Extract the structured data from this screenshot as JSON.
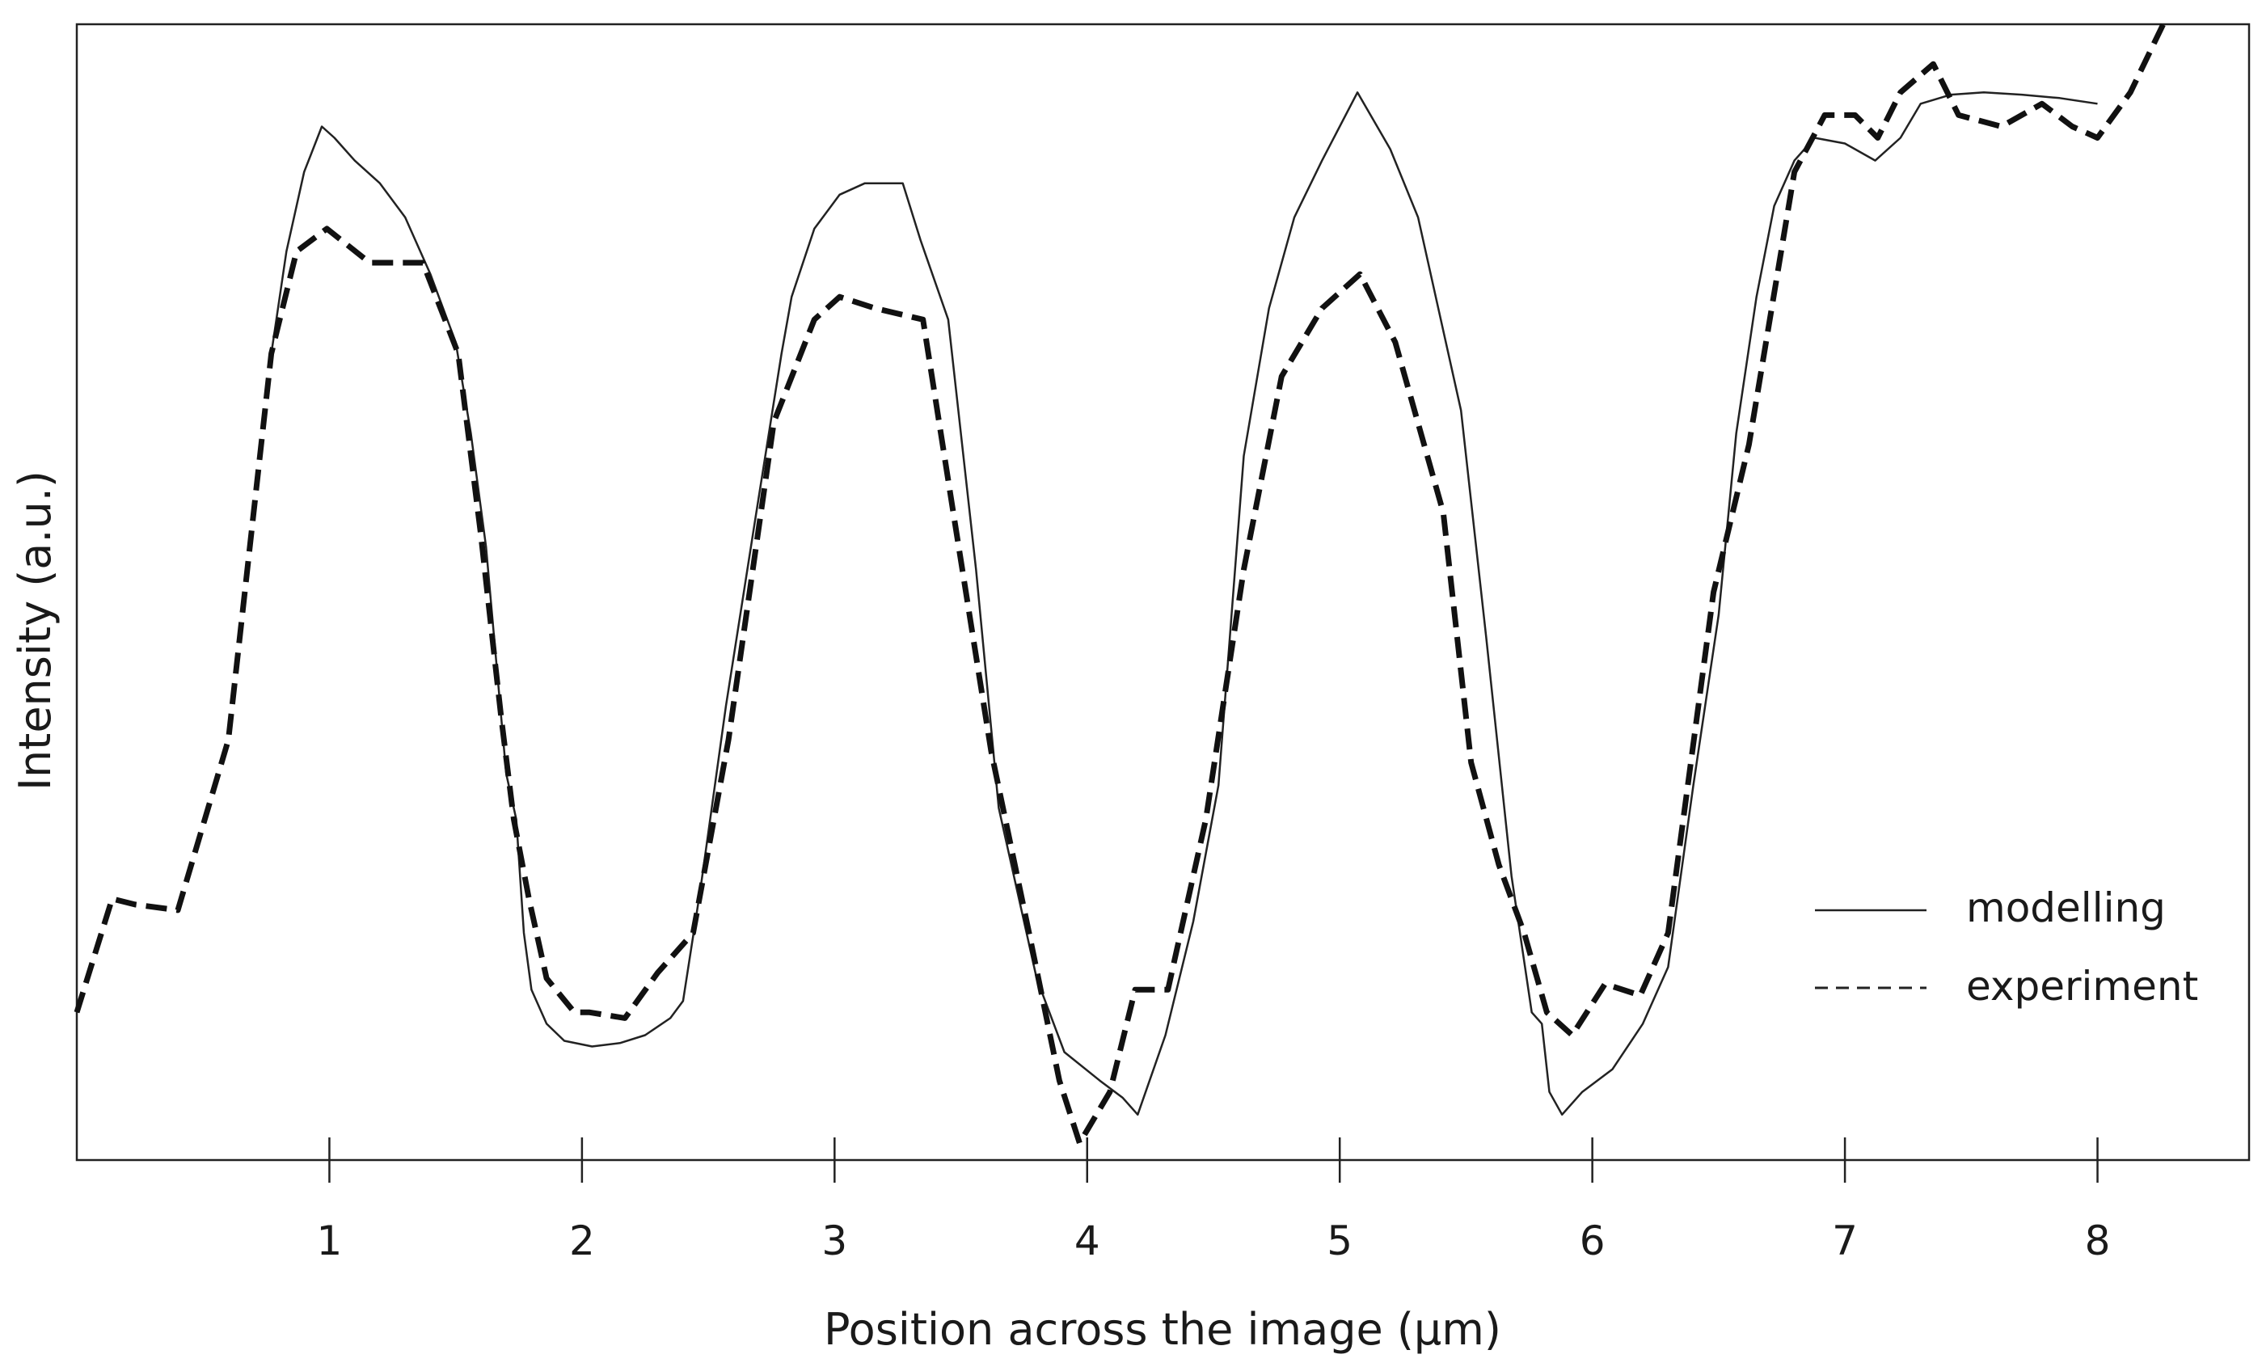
{
  "chart_data": {
    "type": "line",
    "title": "",
    "xlabel": "Position across the image (µm)",
    "ylabel": "Intensity (a.u.)",
    "xlim": [
      0,
      8.6
    ],
    "ylim": [
      0,
      1
    ],
    "x_ticks": [
      1,
      2,
      3,
      4,
      5,
      6,
      7,
      8
    ],
    "y_ticks": [],
    "grid": false,
    "legend_position": "bottom-right",
    "series": [
      {
        "name": "modelling",
        "style": "solid",
        "color": "#222222",
        "points": [
          [
            0.77,
            0.71
          ],
          [
            0.83,
            0.8
          ],
          [
            0.9,
            0.87
          ],
          [
            0.97,
            0.91
          ],
          [
            1.02,
            0.9
          ],
          [
            1.1,
            0.88
          ],
          [
            1.2,
            0.86
          ],
          [
            1.3,
            0.83
          ],
          [
            1.4,
            0.78
          ],
          [
            1.5,
            0.72
          ],
          [
            1.56,
            0.64
          ],
          [
            1.62,
            0.54
          ],
          [
            1.66,
            0.44
          ],
          [
            1.7,
            0.34
          ],
          [
            1.74,
            0.3
          ],
          [
            1.77,
            0.2
          ],
          [
            1.8,
            0.15
          ],
          [
            1.86,
            0.12
          ],
          [
            1.93,
            0.105
          ],
          [
            2.04,
            0.1
          ],
          [
            2.15,
            0.103
          ],
          [
            2.25,
            0.11
          ],
          [
            2.35,
            0.125
          ],
          [
            2.4,
            0.14
          ],
          [
            2.47,
            0.24
          ],
          [
            2.57,
            0.4
          ],
          [
            2.69,
            0.57
          ],
          [
            2.79,
            0.71
          ],
          [
            2.83,
            0.76
          ],
          [
            2.92,
            0.82
          ],
          [
            3.02,
            0.85
          ],
          [
            3.12,
            0.86
          ],
          [
            3.27,
            0.86
          ],
          [
            3.34,
            0.81
          ],
          [
            3.45,
            0.74
          ],
          [
            3.56,
            0.52
          ],
          [
            3.65,
            0.31
          ],
          [
            3.8,
            0.16
          ],
          [
            3.91,
            0.095
          ],
          [
            4.05,
            0.07
          ],
          [
            4.14,
            0.055
          ],
          [
            4.2,
            0.04
          ],
          [
            4.31,
            0.11
          ],
          [
            4.42,
            0.21
          ],
          [
            4.52,
            0.33
          ],
          [
            4.62,
            0.62
          ],
          [
            4.72,
            0.75
          ],
          [
            4.82,
            0.83
          ],
          [
            4.93,
            0.88
          ],
          [
            5.07,
            0.94
          ],
          [
            5.2,
            0.89
          ],
          [
            5.31,
            0.83
          ],
          [
            5.48,
            0.66
          ],
          [
            5.58,
            0.46
          ],
          [
            5.68,
            0.25
          ],
          [
            5.76,
            0.13
          ],
          [
            5.8,
            0.12
          ],
          [
            5.83,
            0.06
          ],
          [
            5.88,
            0.04
          ],
          [
            5.96,
            0.06
          ],
          [
            6.08,
            0.08
          ],
          [
            6.2,
            0.12
          ],
          [
            6.3,
            0.17
          ],
          [
            6.4,
            0.33
          ],
          [
            6.5,
            0.48
          ],
          [
            6.57,
            0.64
          ],
          [
            6.65,
            0.76
          ],
          [
            6.72,
            0.84
          ],
          [
            6.8,
            0.88
          ],
          [
            6.88,
            0.9
          ],
          [
            7.0,
            0.895
          ],
          [
            7.12,
            0.88
          ],
          [
            7.22,
            0.9
          ],
          [
            7.3,
            0.93
          ],
          [
            7.42,
            0.938
          ],
          [
            7.55,
            0.94
          ],
          [
            7.7,
            0.938
          ],
          [
            7.85,
            0.935
          ],
          [
            8.0,
            0.93
          ]
        ]
      },
      {
        "name": "experiment",
        "style": "dashed",
        "color": "#111111",
        "points": [
          [
            0.0,
            0.13
          ],
          [
            0.14,
            0.23
          ],
          [
            0.23,
            0.225
          ],
          [
            0.4,
            0.22
          ],
          [
            0.6,
            0.37
          ],
          [
            0.77,
            0.71
          ],
          [
            0.87,
            0.8
          ],
          [
            0.99,
            0.82
          ],
          [
            1.16,
            0.79
          ],
          [
            1.37,
            0.79
          ],
          [
            1.51,
            0.71
          ],
          [
            1.6,
            0.55
          ],
          [
            1.68,
            0.39
          ],
          [
            1.73,
            0.3
          ],
          [
            1.79,
            0.23
          ],
          [
            1.86,
            0.16
          ],
          [
            1.97,
            0.13
          ],
          [
            2.03,
            0.13
          ],
          [
            2.17,
            0.125
          ],
          [
            2.3,
            0.165
          ],
          [
            2.44,
            0.2
          ],
          [
            2.58,
            0.37
          ],
          [
            2.76,
            0.65
          ],
          [
            2.92,
            0.74
          ],
          [
            3.02,
            0.76
          ],
          [
            3.16,
            0.75
          ],
          [
            3.35,
            0.74
          ],
          [
            3.47,
            0.57
          ],
          [
            3.62,
            0.36
          ],
          [
            3.77,
            0.2
          ],
          [
            3.89,
            0.07
          ],
          [
            3.97,
            0.015
          ],
          [
            4.09,
            0.06
          ],
          [
            4.19,
            0.15
          ],
          [
            4.32,
            0.15
          ],
          [
            4.47,
            0.3
          ],
          [
            4.62,
            0.52
          ],
          [
            4.77,
            0.69
          ],
          [
            4.93,
            0.75
          ],
          [
            5.08,
            0.78
          ],
          [
            5.22,
            0.72
          ],
          [
            5.41,
            0.57
          ],
          [
            5.52,
            0.35
          ],
          [
            5.63,
            0.26
          ],
          [
            5.73,
            0.2
          ],
          [
            5.82,
            0.13
          ],
          [
            5.92,
            0.11
          ],
          [
            6.05,
            0.155
          ],
          [
            6.19,
            0.145
          ],
          [
            6.3,
            0.2
          ],
          [
            6.48,
            0.5
          ],
          [
            6.62,
            0.63
          ],
          [
            6.8,
            0.87
          ],
          [
            6.92,
            0.92
          ],
          [
            7.04,
            0.92
          ],
          [
            7.13,
            0.9
          ],
          [
            7.22,
            0.94
          ],
          [
            7.35,
            0.965
          ],
          [
            7.45,
            0.92
          ],
          [
            7.62,
            0.91
          ],
          [
            7.78,
            0.93
          ],
          [
            7.9,
            0.91
          ],
          [
            8.0,
            0.9
          ],
          [
            8.13,
            0.94
          ],
          [
            8.26,
            1.0
          ]
        ]
      }
    ]
  }
}
